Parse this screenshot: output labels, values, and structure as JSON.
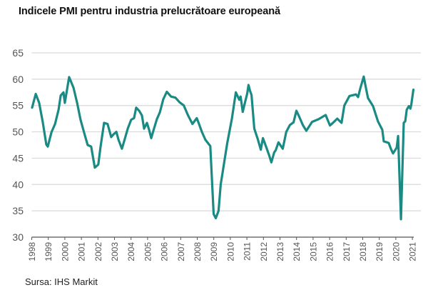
{
  "chart_data": {
    "type": "line",
    "title": "Indicele PMI pentru industria prelucrătoare europeană",
    "source": "Sursa: IHS Markit",
    "xlabel": "",
    "ylabel": "",
    "ylim": [
      30,
      65
    ],
    "xlim": [
      1998,
      2021.1
    ],
    "y_ticks": [
      30,
      35,
      40,
      45,
      50,
      55,
      60,
      65
    ],
    "x_ticks": [
      "1998",
      "1999",
      "2000",
      "2001",
      "2002",
      "2003",
      "2004",
      "2005",
      "2006",
      "2007",
      "2008",
      "2009",
      "2010",
      "2011",
      "2012",
      "2013",
      "2014",
      "2015",
      "2016",
      "2017",
      "2018",
      "2019",
      "2020",
      "2021"
    ],
    "grid": "horizontal",
    "line_color": "#1a8a84",
    "series": [
      {
        "name": "PMI",
        "x": [
          1998.02,
          1998.24,
          1998.45,
          1998.67,
          1998.88,
          1998.97,
          1999.19,
          1999.41,
          1999.62,
          1999.75,
          1999.92,
          2000.0,
          2000.26,
          2000.52,
          2000.74,
          2000.95,
          2001.17,
          2001.38,
          2001.59,
          2001.81,
          2002.02,
          2002.15,
          2002.37,
          2002.58,
          2002.8,
          2002.93,
          2003.11,
          2003.24,
          2003.45,
          2003.58,
          2003.8,
          2004.01,
          2004.18,
          2004.31,
          2004.49,
          2004.66,
          2004.79,
          2004.96,
          2005.09,
          2005.22,
          2005.39,
          2005.56,
          2005.74,
          2005.95,
          2006.16,
          2006.42,
          2006.68,
          2006.94,
          2007.19,
          2007.45,
          2007.71,
          2007.97,
          2008.06,
          2008.28,
          2008.49,
          2008.79,
          2008.99,
          2009.12,
          2009.29,
          2009.42,
          2009.81,
          2010.1,
          2010.33,
          2010.54,
          2010.62,
          2010.75,
          2010.84,
          2011.02,
          2011.1,
          2011.19,
          2011.28,
          2011.45,
          2011.66,
          2011.84,
          2011.97,
          2012.18,
          2012.35,
          2012.48,
          2012.65,
          2012.74,
          2012.91,
          2013.17,
          2013.38,
          2013.6,
          2013.82,
          2013.99,
          2014.16,
          2014.38,
          2014.59,
          2014.94,
          2015.33,
          2015.76,
          2016.02,
          2016.2,
          2016.46,
          2016.72,
          2016.89,
          2017.2,
          2017.59,
          2017.72,
          2017.85,
          2018.06,
          2018.19,
          2018.32,
          2018.62,
          2018.92,
          2019.18,
          2019.27,
          2019.57,
          2019.7,
          2019.83,
          2020.05,
          2020.14,
          2020.31,
          2020.48,
          2020.57,
          2020.66,
          2020.79,
          2020.88,
          2020.93,
          2021.06
        ],
        "values": [
          54.6,
          57.2,
          55.5,
          51.8,
          47.6,
          47.2,
          49.9,
          51.5,
          54.2,
          56.9,
          57.5,
          55.5,
          60.4,
          58.4,
          55.5,
          52.3,
          49.8,
          47.5,
          47.2,
          43.2,
          43.8,
          47.0,
          51.7,
          51.5,
          49.0,
          49.5,
          50.0,
          48.5,
          46.8,
          48.2,
          50.6,
          52.3,
          52.6,
          54.6,
          54.0,
          53.1,
          50.6,
          51.7,
          50.4,
          48.8,
          50.6,
          52.4,
          53.7,
          56.2,
          57.6,
          56.7,
          56.5,
          55.6,
          55.0,
          53.1,
          51.5,
          52.6,
          51.9,
          50.0,
          48.5,
          47.3,
          34.4,
          33.6,
          35.0,
          40.0,
          47.8,
          52.6,
          57.5,
          56.1,
          56.7,
          53.8,
          55.0,
          57.3,
          58.9,
          57.8,
          57.0,
          50.6,
          48.6,
          46.6,
          48.8,
          47.0,
          45.5,
          44.2,
          46.1,
          46.5,
          48.0,
          46.8,
          50.0,
          51.3,
          51.8,
          54.0,
          52.9,
          51.3,
          50.2,
          51.9,
          52.4,
          53.2,
          51.2,
          51.7,
          52.5,
          51.7,
          55.0,
          56.8,
          57.1,
          56.6,
          58.2,
          60.5,
          58.4,
          56.4,
          54.9,
          52.0,
          50.4,
          48.2,
          47.9,
          46.8,
          45.9,
          47.0,
          49.2,
          33.4,
          51.7,
          52.0,
          54.2,
          54.9,
          54.4,
          55.1,
          58.0
        ]
      }
    ]
  }
}
